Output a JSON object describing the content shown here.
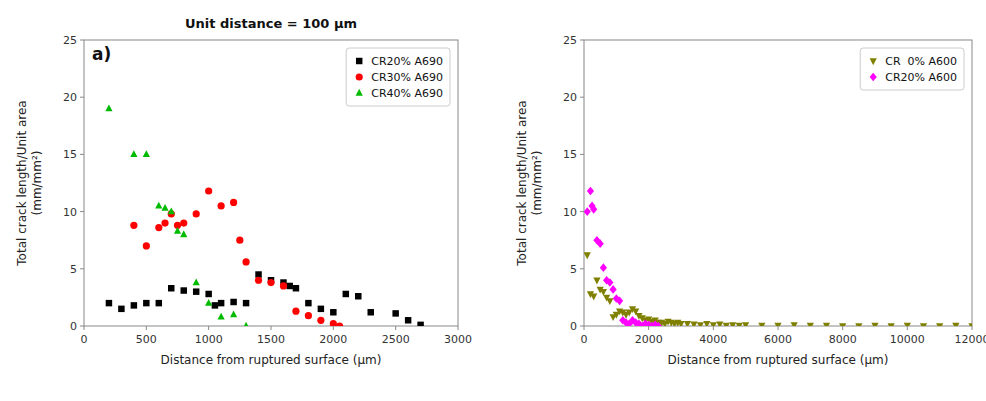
{
  "chart_data": [
    {
      "type": "scatter",
      "title": "Unit distance = 100 μm",
      "xlabel": "Distance from ruptured surface (μm)",
      "ylabel": "Total crack length/Unit area\n(mm/mm²)",
      "annotations": [
        "a)"
      ],
      "series": [
        {
          "name": "CR20% A690",
          "color": "#000000",
          "marker": "square",
          "x": [
            200,
            300,
            400,
            500,
            600,
            700,
            800,
            900,
            1000,
            1050,
            1100,
            1200,
            1300,
            1400,
            1500,
            1600,
            1650,
            1700,
            1800,
            1900,
            2000,
            2100,
            2200,
            2300,
            2500,
            2600,
            2700
          ],
          "values": [
            2.0,
            1.5,
            1.8,
            2.0,
            2.0,
            3.3,
            3.1,
            3.0,
            2.8,
            1.8,
            2.0,
            2.1,
            2.0,
            4.5,
            4.0,
            3.8,
            3.5,
            3.3,
            2.0,
            1.5,
            1.2,
            2.8,
            2.6,
            1.2,
            1.1,
            0.5,
            0.1
          ]
        },
        {
          "name": "CR30% A690",
          "color": "#ff0000",
          "marker": "circle",
          "x": [
            400,
            500,
            600,
            650,
            700,
            750,
            800,
            900,
            1000,
            1100,
            1200,
            1250,
            1300,
            1400,
            1500,
            1600,
            1700,
            1800,
            1900,
            2000,
            2050
          ],
          "values": [
            8.8,
            7.0,
            8.6,
            9.0,
            9.8,
            8.8,
            9.0,
            9.8,
            11.8,
            10.5,
            10.8,
            7.5,
            5.6,
            4.0,
            3.8,
            3.5,
            1.3,
            0.9,
            0.5,
            0.2,
            0.0
          ]
        },
        {
          "name": "CR40% A690",
          "color": "#00bb00",
          "marker": "triangle-up",
          "x": [
            200,
            400,
            500,
            600,
            650,
            700,
            750,
            800,
            900,
            1000,
            1100,
            1200,
            1300
          ],
          "values": [
            19.0,
            15.0,
            15.0,
            10.5,
            10.3,
            10.0,
            8.3,
            8.0,
            3.8,
            2.0,
            0.8,
            1.0,
            0.0
          ]
        }
      ],
      "xlim": [
        0,
        3000
      ],
      "ylim": [
        0,
        25
      ],
      "xticks": [
        0,
        500,
        1000,
        1500,
        2000,
        2500,
        3000
      ],
      "yticks": [
        0,
        5,
        10,
        15,
        20,
        25
      ],
      "grid": false,
      "legend": "upper right"
    },
    {
      "type": "scatter",
      "xlabel": "Distance from ruptured surface (μm)",
      "ylabel": "Total crack length/Unit area\n(mm/mm²)",
      "series": [
        {
          "name": "CR  0% A600",
          "color": "#808000",
          "marker": "triangle-down",
          "x": [
            100,
            200,
            300,
            400,
            500,
            600,
            700,
            800,
            900,
            1000,
            1100,
            1200,
            1300,
            1400,
            1500,
            1600,
            1700,
            1800,
            1900,
            2000,
            2100,
            2200,
            2300,
            2400,
            2500,
            2600,
            2700,
            2800,
            2900,
            3000,
            3200,
            3400,
            3600,
            3800,
            4000,
            4200,
            4400,
            4600,
            4800,
            5000,
            5500,
            6000,
            6500,
            7000,
            7500,
            8000,
            8500,
            9000,
            9500,
            10000,
            10500,
            11000,
            11500,
            12000
          ],
          "values": [
            6.2,
            2.8,
            2.6,
            4.0,
            3.2,
            3.0,
            2.5,
            2.2,
            0.8,
            1.0,
            1.3,
            1.2,
            1.0,
            1.2,
            1.5,
            1.3,
            0.9,
            0.7,
            0.5,
            0.6,
            0.4,
            0.5,
            0.3,
            0.3,
            0.2,
            0.4,
            0.3,
            0.2,
            0.3,
            0.2,
            0.2,
            0.15,
            0.1,
            0.2,
            0.1,
            0.15,
            0.05,
            0.1,
            0.05,
            0.1,
            0.05,
            0.05,
            0.1,
            0.05,
            0.05,
            0.0,
            0.0,
            0.05,
            0.0,
            0.05,
            0.0,
            0.0,
            0.05,
            0.0
          ]
        },
        {
          "name": "CR20% A600",
          "color": "#ff00ff",
          "marker": "diamond",
          "x": [
            100,
            200,
            250,
            300,
            400,
            500,
            600,
            700,
            800,
            900,
            1000,
            1100,
            1200,
            1300,
            1400,
            1500,
            1600,
            1700,
            1800,
            1900,
            2000,
            2100,
            2200,
            2300
          ],
          "values": [
            10.0,
            11.8,
            10.5,
            10.2,
            7.5,
            7.2,
            5.1,
            4.0,
            3.8,
            3.2,
            2.4,
            2.2,
            0.5,
            0.3,
            0.2,
            0.5,
            0.3,
            0.2,
            0.0,
            0.2,
            0.1,
            0.0,
            0.1,
            0.0
          ]
        }
      ],
      "xlim": [
        0,
        12000
      ],
      "ylim": [
        0,
        25
      ],
      "xticks": [
        0,
        2000,
        4000,
        6000,
        8000,
        10000,
        12000
      ],
      "yticks": [
        0,
        5,
        10,
        15,
        20,
        25
      ],
      "grid": false,
      "legend": "upper right"
    }
  ]
}
